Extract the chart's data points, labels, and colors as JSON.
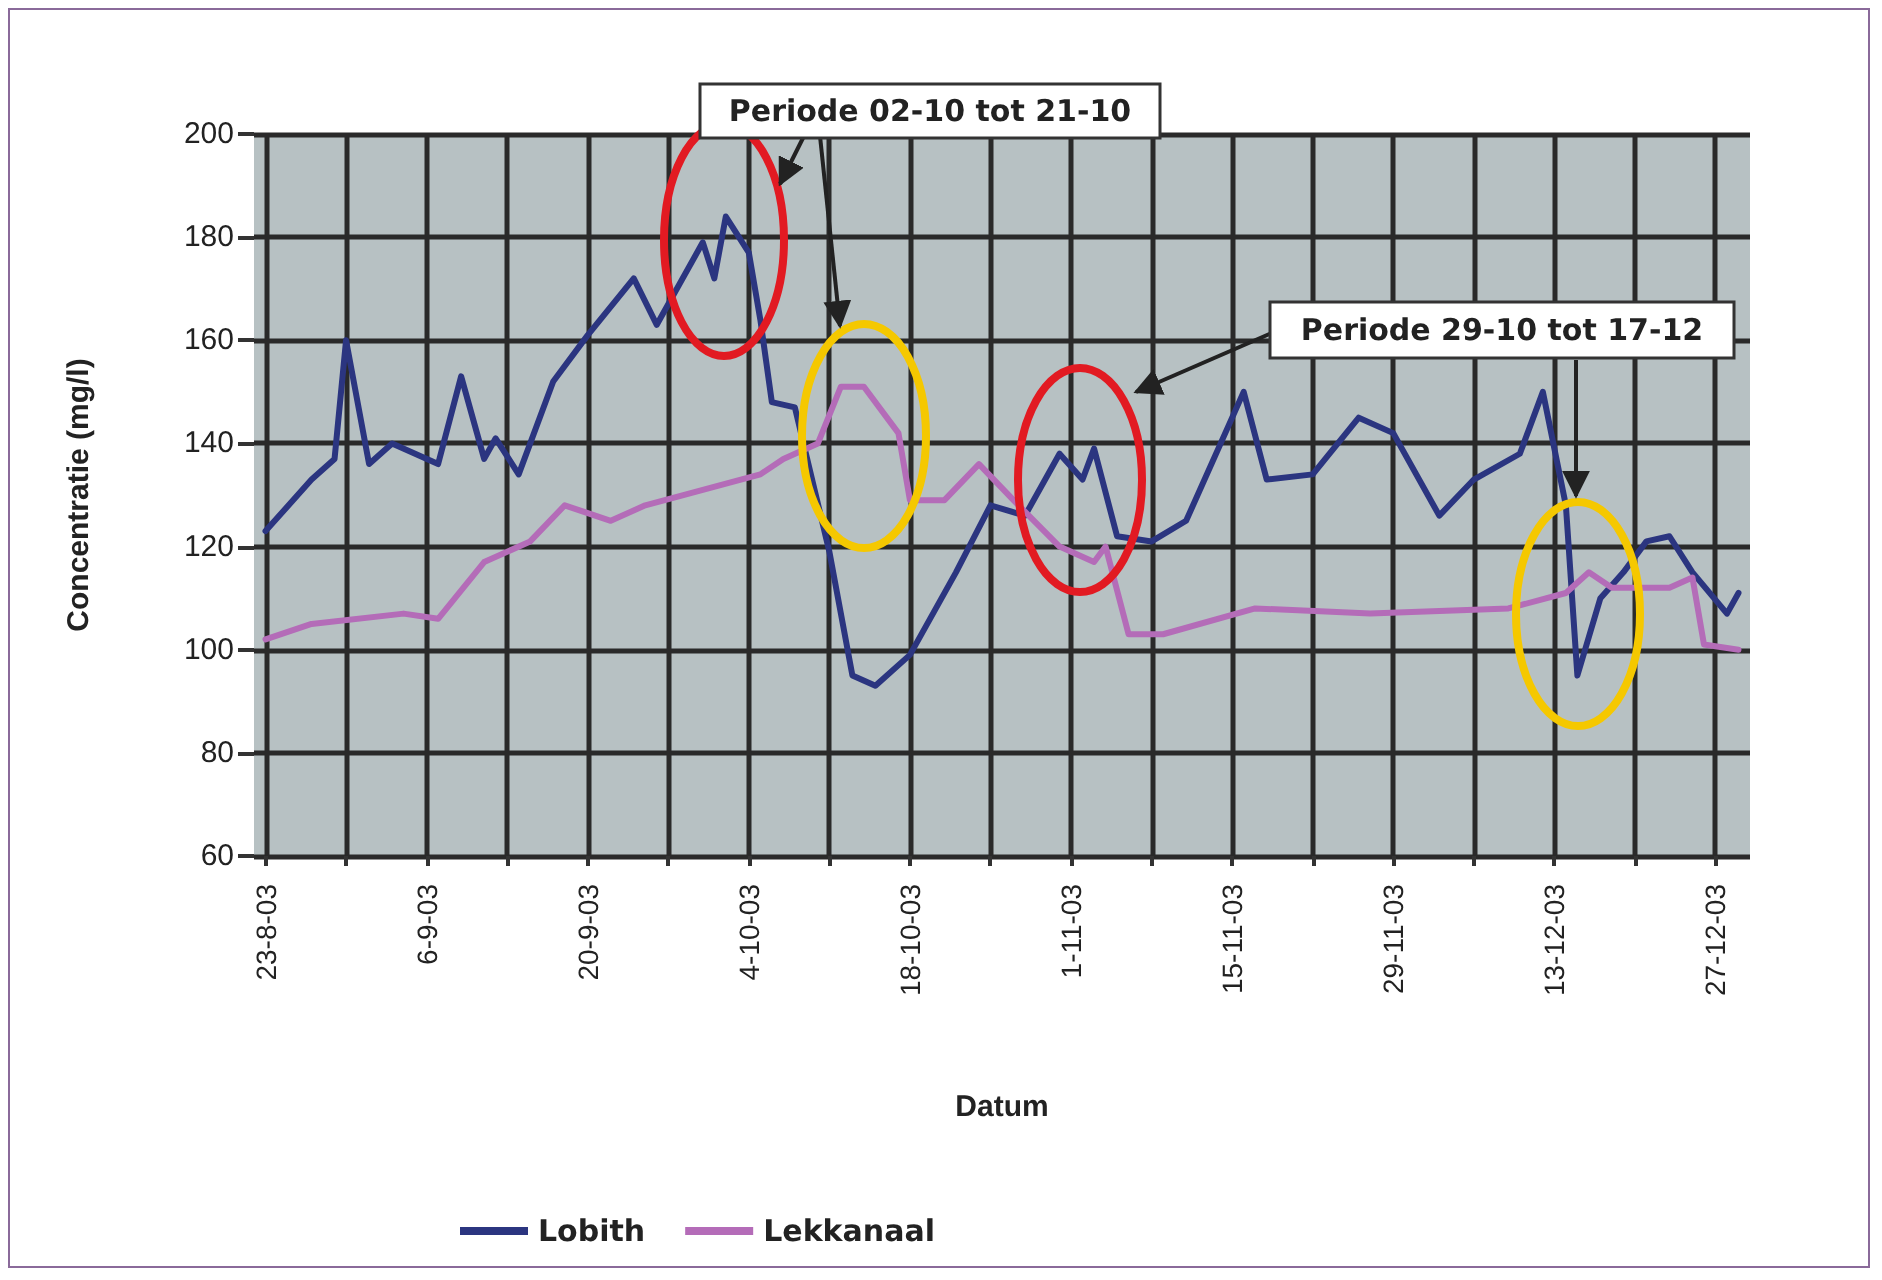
{
  "chart_data": {
    "type": "line",
    "xlabel": "Datum",
    "ylabel": "Concentratie (mg/l)",
    "annotations": [
      "Periode 02-10 tot 21-10",
      "Periode 29-10 tot 17-12"
    ],
    "series": [
      {
        "name": "Lobith",
        "color": "#2b3580",
        "x": [
          "--08-23",
          "--08-27",
          "--08-29",
          "--08-30",
          "--09-01",
          "--09-03",
          "--09-07",
          "--09-09",
          "--09-11",
          "--09-12",
          "--09-14",
          "--09-17",
          "--09-20",
          "--09-24",
          "--09-26",
          "--09-30",
          "--10-01",
          "--10-02",
          "--10-04",
          "--10-05",
          "--10-06",
          "--10-08",
          "--10-11",
          "--10-13",
          "--10-15",
          "--10-18",
          "--10-22",
          "--10-25",
          "--10-28",
          "--10-31",
          "--11-02",
          "--11-03",
          "--11-05",
          "--11-08",
          "--11-11",
          "--11-16",
          "--11-18",
          "--11-22",
          "--11-26",
          "--11-29",
          "--12-03",
          "--12-06",
          "--12-10",
          "--12-12",
          "--12-14",
          "--12-15",
          "--12-17",
          "--12-19",
          "--12-21",
          "--12-23",
          "--12-25",
          "--12-28",
          "--12-29"
        ],
        "values": [
          123,
          133,
          137,
          160,
          136,
          140,
          136,
          153,
          137,
          141,
          134,
          152,
          161,
          172,
          163,
          179,
          172,
          184,
          177,
          164,
          148,
          147,
          119,
          95,
          93,
          99,
          115,
          128,
          126,
          138,
          133,
          139,
          122,
          121,
          125,
          150,
          133,
          134,
          145,
          142,
          126,
          133,
          138,
          150,
          128,
          95,
          110,
          115,
          121,
          122,
          115,
          107,
          111
        ]
      },
      {
        "name": "Lekkanaal",
        "color": "#b46cb8",
        "x": [
          "--08-23",
          "--08-27",
          "--09-04",
          "--09-07",
          "--09-11",
          "--09-15",
          "--09-18",
          "--09-22",
          "--09-25",
          "--09-30",
          "--10-05",
          "--10-07",
          "--10-10",
          "--10-12",
          "--10-14",
          "--10-17",
          "--10-18",
          "--10-21",
          "--10-24",
          "--10-27",
          "--10-31",
          "--11-03",
          "--11-04",
          "--11-06",
          "--11-09",
          "--11-17",
          "--11-27",
          "--12-09",
          "--12-14",
          "--12-16",
          "--12-18",
          "--12-23",
          "--12-25",
          "--12-26",
          "--12-29"
        ],
        "values": [
          102,
          105,
          107,
          106,
          117,
          121,
          128,
          125,
          128,
          131,
          134,
          137,
          140,
          151,
          151,
          142,
          129,
          129,
          136,
          129,
          120,
          117,
          120,
          103,
          103,
          108,
          107,
          108,
          111,
          115,
          112,
          112,
          114,
          101,
          100
        ]
      }
    ],
    "xlim": [
      "--08-22",
      "--12-30"
    ],
    "xticks": [
      {
        "value": "--08-23",
        "label": "23-8-03"
      },
      {
        "value": "--08-30",
        "label": null
      },
      {
        "value": "--09-06",
        "label": "6-9-03"
      },
      {
        "value": "--09-13",
        "label": null
      },
      {
        "value": "--09-20",
        "label": "20-9-03"
      },
      {
        "value": "--09-27",
        "label": null
      },
      {
        "value": "--10-04",
        "label": "4-10-03"
      },
      {
        "value": "--10-11",
        "label": null
      },
      {
        "value": "--10-18",
        "label": "18-10-03"
      },
      {
        "value": "--10-25",
        "label": null
      },
      {
        "value": "--11-01",
        "label": "1-11-03"
      },
      {
        "value": "--11-08",
        "label": null
      },
      {
        "value": "--11-15",
        "label": "15-11-03"
      },
      {
        "value": "--11-22",
        "label": null
      },
      {
        "value": "--11-29",
        "label": "29-11-03"
      },
      {
        "value": "--12-06",
        "label": null
      },
      {
        "value": "--12-13",
        "label": "13-12-03"
      },
      {
        "value": "--12-20",
        "label": null
      },
      {
        "value": "--12-27",
        "label": "27-12-03"
      }
    ],
    "ylim": [
      60,
      200
    ],
    "yticks": [
      60,
      80,
      100,
      120,
      140,
      160,
      180,
      200
    ],
    "grid": true,
    "legend": "bottom",
    "marker": "none",
    "line_style": "solid"
  }
}
